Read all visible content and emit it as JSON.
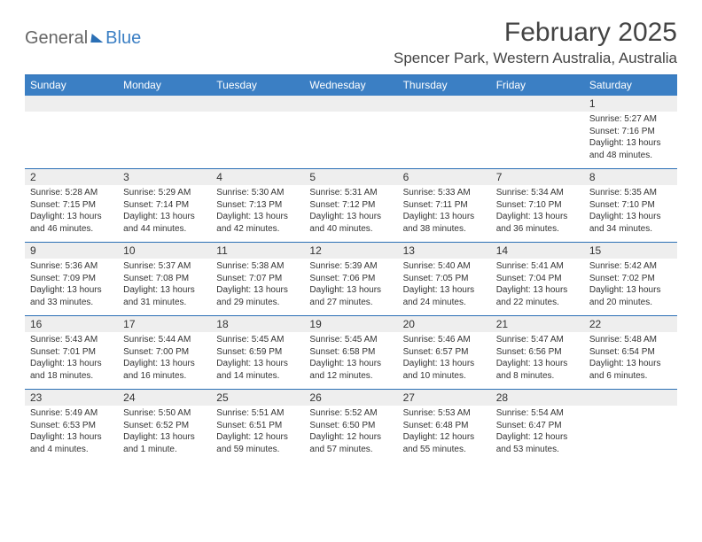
{
  "logo": {
    "part1": "General",
    "part2": "Blue"
  },
  "title": "February 2025",
  "location": "Spencer Park, Western Australia, Australia",
  "colors": {
    "header_bg": "#3b7fc4",
    "border": "#2a6fb5",
    "daynum_bg": "#eeeeee",
    "text": "#333333",
    "title_text": "#444444",
    "bg": "#ffffff"
  },
  "weekdays": [
    "Sunday",
    "Monday",
    "Tuesday",
    "Wednesday",
    "Thursday",
    "Friday",
    "Saturday"
  ],
  "weeks": [
    [
      {
        "num": "",
        "sunrise": "",
        "sunset": "",
        "daylight": ""
      },
      {
        "num": "",
        "sunrise": "",
        "sunset": "",
        "daylight": ""
      },
      {
        "num": "",
        "sunrise": "",
        "sunset": "",
        "daylight": ""
      },
      {
        "num": "",
        "sunrise": "",
        "sunset": "",
        "daylight": ""
      },
      {
        "num": "",
        "sunrise": "",
        "sunset": "",
        "daylight": ""
      },
      {
        "num": "",
        "sunrise": "",
        "sunset": "",
        "daylight": ""
      },
      {
        "num": "1",
        "sunrise": "Sunrise: 5:27 AM",
        "sunset": "Sunset: 7:16 PM",
        "daylight": "Daylight: 13 hours and 48 minutes."
      }
    ],
    [
      {
        "num": "2",
        "sunrise": "Sunrise: 5:28 AM",
        "sunset": "Sunset: 7:15 PM",
        "daylight": "Daylight: 13 hours and 46 minutes."
      },
      {
        "num": "3",
        "sunrise": "Sunrise: 5:29 AM",
        "sunset": "Sunset: 7:14 PM",
        "daylight": "Daylight: 13 hours and 44 minutes."
      },
      {
        "num": "4",
        "sunrise": "Sunrise: 5:30 AM",
        "sunset": "Sunset: 7:13 PM",
        "daylight": "Daylight: 13 hours and 42 minutes."
      },
      {
        "num": "5",
        "sunrise": "Sunrise: 5:31 AM",
        "sunset": "Sunset: 7:12 PM",
        "daylight": "Daylight: 13 hours and 40 minutes."
      },
      {
        "num": "6",
        "sunrise": "Sunrise: 5:33 AM",
        "sunset": "Sunset: 7:11 PM",
        "daylight": "Daylight: 13 hours and 38 minutes."
      },
      {
        "num": "7",
        "sunrise": "Sunrise: 5:34 AM",
        "sunset": "Sunset: 7:10 PM",
        "daylight": "Daylight: 13 hours and 36 minutes."
      },
      {
        "num": "8",
        "sunrise": "Sunrise: 5:35 AM",
        "sunset": "Sunset: 7:10 PM",
        "daylight": "Daylight: 13 hours and 34 minutes."
      }
    ],
    [
      {
        "num": "9",
        "sunrise": "Sunrise: 5:36 AM",
        "sunset": "Sunset: 7:09 PM",
        "daylight": "Daylight: 13 hours and 33 minutes."
      },
      {
        "num": "10",
        "sunrise": "Sunrise: 5:37 AM",
        "sunset": "Sunset: 7:08 PM",
        "daylight": "Daylight: 13 hours and 31 minutes."
      },
      {
        "num": "11",
        "sunrise": "Sunrise: 5:38 AM",
        "sunset": "Sunset: 7:07 PM",
        "daylight": "Daylight: 13 hours and 29 minutes."
      },
      {
        "num": "12",
        "sunrise": "Sunrise: 5:39 AM",
        "sunset": "Sunset: 7:06 PM",
        "daylight": "Daylight: 13 hours and 27 minutes."
      },
      {
        "num": "13",
        "sunrise": "Sunrise: 5:40 AM",
        "sunset": "Sunset: 7:05 PM",
        "daylight": "Daylight: 13 hours and 24 minutes."
      },
      {
        "num": "14",
        "sunrise": "Sunrise: 5:41 AM",
        "sunset": "Sunset: 7:04 PM",
        "daylight": "Daylight: 13 hours and 22 minutes."
      },
      {
        "num": "15",
        "sunrise": "Sunrise: 5:42 AM",
        "sunset": "Sunset: 7:02 PM",
        "daylight": "Daylight: 13 hours and 20 minutes."
      }
    ],
    [
      {
        "num": "16",
        "sunrise": "Sunrise: 5:43 AM",
        "sunset": "Sunset: 7:01 PM",
        "daylight": "Daylight: 13 hours and 18 minutes."
      },
      {
        "num": "17",
        "sunrise": "Sunrise: 5:44 AM",
        "sunset": "Sunset: 7:00 PM",
        "daylight": "Daylight: 13 hours and 16 minutes."
      },
      {
        "num": "18",
        "sunrise": "Sunrise: 5:45 AM",
        "sunset": "Sunset: 6:59 PM",
        "daylight": "Daylight: 13 hours and 14 minutes."
      },
      {
        "num": "19",
        "sunrise": "Sunrise: 5:45 AM",
        "sunset": "Sunset: 6:58 PM",
        "daylight": "Daylight: 13 hours and 12 minutes."
      },
      {
        "num": "20",
        "sunrise": "Sunrise: 5:46 AM",
        "sunset": "Sunset: 6:57 PM",
        "daylight": "Daylight: 13 hours and 10 minutes."
      },
      {
        "num": "21",
        "sunrise": "Sunrise: 5:47 AM",
        "sunset": "Sunset: 6:56 PM",
        "daylight": "Daylight: 13 hours and 8 minutes."
      },
      {
        "num": "22",
        "sunrise": "Sunrise: 5:48 AM",
        "sunset": "Sunset: 6:54 PM",
        "daylight": "Daylight: 13 hours and 6 minutes."
      }
    ],
    [
      {
        "num": "23",
        "sunrise": "Sunrise: 5:49 AM",
        "sunset": "Sunset: 6:53 PM",
        "daylight": "Daylight: 13 hours and 4 minutes."
      },
      {
        "num": "24",
        "sunrise": "Sunrise: 5:50 AM",
        "sunset": "Sunset: 6:52 PM",
        "daylight": "Daylight: 13 hours and 1 minute."
      },
      {
        "num": "25",
        "sunrise": "Sunrise: 5:51 AM",
        "sunset": "Sunset: 6:51 PM",
        "daylight": "Daylight: 12 hours and 59 minutes."
      },
      {
        "num": "26",
        "sunrise": "Sunrise: 5:52 AM",
        "sunset": "Sunset: 6:50 PM",
        "daylight": "Daylight: 12 hours and 57 minutes."
      },
      {
        "num": "27",
        "sunrise": "Sunrise: 5:53 AM",
        "sunset": "Sunset: 6:48 PM",
        "daylight": "Daylight: 12 hours and 55 minutes."
      },
      {
        "num": "28",
        "sunrise": "Sunrise: 5:54 AM",
        "sunset": "Sunset: 6:47 PM",
        "daylight": "Daylight: 12 hours and 53 minutes."
      },
      {
        "num": "",
        "sunrise": "",
        "sunset": "",
        "daylight": ""
      }
    ]
  ]
}
